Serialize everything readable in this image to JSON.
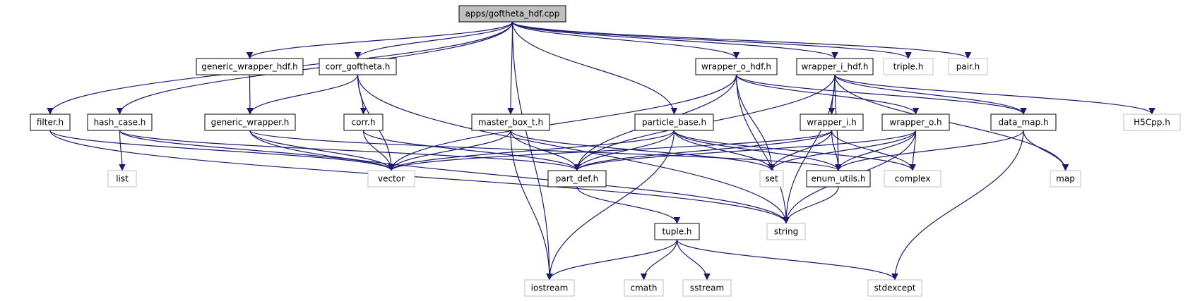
{
  "title": "apps/goftheta_hdf.cpp",
  "colors": {
    "edge": "#191970",
    "root_fill": "#bfbfbf",
    "node_border": "#000000",
    "external_border": "#bfbfbf",
    "text": "#000000"
  },
  "nodes": [
    {
      "id": "root",
      "label": "apps/goftheta_hdf.cpp",
      "kind": "root"
    },
    {
      "id": "generic_wrapper_hdf",
      "label": "generic_wrapper_hdf.h",
      "kind": "header"
    },
    {
      "id": "corr_goftheta",
      "label": "corr_goftheta.h",
      "kind": "header"
    },
    {
      "id": "wrapper_o_hdf",
      "label": "wrapper_o_hdf.h",
      "kind": "header"
    },
    {
      "id": "wrapper_i_hdf",
      "label": "wrapper_i_hdf.h",
      "kind": "header"
    },
    {
      "id": "triple",
      "label": "triple.h",
      "kind": "external"
    },
    {
      "id": "pair",
      "label": "pair.h",
      "kind": "external"
    },
    {
      "id": "filter",
      "label": "filter.h",
      "kind": "header"
    },
    {
      "id": "hash_case",
      "label": "hash_case.h",
      "kind": "header"
    },
    {
      "id": "generic_wrapper",
      "label": "generic_wrapper.h",
      "kind": "header"
    },
    {
      "id": "corr",
      "label": "corr.h",
      "kind": "header"
    },
    {
      "id": "master_box_t",
      "label": "master_box_t.h",
      "kind": "header"
    },
    {
      "id": "particle_base",
      "label": "particle_base.h",
      "kind": "header"
    },
    {
      "id": "wrapper_i",
      "label": "wrapper_i.h",
      "kind": "header"
    },
    {
      "id": "wrapper_o",
      "label": "wrapper_o.h",
      "kind": "header"
    },
    {
      "id": "data_map",
      "label": "data_map.h",
      "kind": "header"
    },
    {
      "id": "H5Cpp",
      "label": "H5Cpp.h",
      "kind": "external"
    },
    {
      "id": "list",
      "label": "list",
      "kind": "external"
    },
    {
      "id": "vector",
      "label": "vector",
      "kind": "external"
    },
    {
      "id": "part_def",
      "label": "part_def.h",
      "kind": "header"
    },
    {
      "id": "set",
      "label": "set",
      "kind": "external"
    },
    {
      "id": "enum_utils",
      "label": "enum_utils.h",
      "kind": "header"
    },
    {
      "id": "complex",
      "label": "complex",
      "kind": "external"
    },
    {
      "id": "map",
      "label": "map",
      "kind": "external"
    },
    {
      "id": "string",
      "label": "string",
      "kind": "external"
    },
    {
      "id": "tuple",
      "label": "tuple.h",
      "kind": "header"
    },
    {
      "id": "iostream",
      "label": "iostream",
      "kind": "external"
    },
    {
      "id": "cmath",
      "label": "cmath",
      "kind": "external"
    },
    {
      "id": "sstream",
      "label": "sstream",
      "kind": "external"
    },
    {
      "id": "stdexcept",
      "label": "stdexcept",
      "kind": "external"
    }
  ],
  "edges": [
    [
      "root",
      "generic_wrapper_hdf"
    ],
    [
      "root",
      "corr_goftheta"
    ],
    [
      "root",
      "wrapper_o_hdf"
    ],
    [
      "root",
      "wrapper_i_hdf"
    ],
    [
      "root",
      "triple"
    ],
    [
      "root",
      "pair"
    ],
    [
      "root",
      "filter"
    ],
    [
      "root",
      "hash_case"
    ],
    [
      "root",
      "master_box_t"
    ],
    [
      "root",
      "particle_base"
    ],
    [
      "root",
      "iostream"
    ],
    [
      "generic_wrapper_hdf",
      "generic_wrapper"
    ],
    [
      "corr_goftheta",
      "generic_wrapper"
    ],
    [
      "corr_goftheta",
      "corr"
    ],
    [
      "corr_goftheta",
      "vector"
    ],
    [
      "corr_goftheta",
      "string"
    ],
    [
      "generic_wrapper",
      "vector"
    ],
    [
      "generic_wrapper",
      "enum_utils"
    ],
    [
      "generic_wrapper",
      "string"
    ],
    [
      "filter",
      "vector"
    ],
    [
      "filter",
      "string"
    ],
    [
      "hash_case",
      "list"
    ],
    [
      "hash_case",
      "vector"
    ],
    [
      "hash_case",
      "part_def"
    ],
    [
      "corr",
      "vector"
    ],
    [
      "corr",
      "part_def"
    ],
    [
      "master_box_t",
      "vector"
    ],
    [
      "master_box_t",
      "part_def"
    ],
    [
      "master_box_t",
      "set"
    ],
    [
      "master_box_t",
      "iostream"
    ],
    [
      "particle_base",
      "vector"
    ],
    [
      "particle_base",
      "part_def"
    ],
    [
      "particle_base",
      "set"
    ],
    [
      "particle_base",
      "enum_utils"
    ],
    [
      "particle_base",
      "complex"
    ],
    [
      "particle_base",
      "iostream"
    ],
    [
      "wrapper_o_hdf",
      "vector"
    ],
    [
      "wrapper_o_hdf",
      "part_def"
    ],
    [
      "wrapper_o_hdf",
      "set"
    ],
    [
      "wrapper_o_hdf",
      "string"
    ],
    [
      "wrapper_o_hdf",
      "wrapper_o"
    ],
    [
      "wrapper_o_hdf",
      "data_map"
    ],
    [
      "wrapper_i_hdf",
      "part_def"
    ],
    [
      "wrapper_i_hdf",
      "wrapper_i"
    ],
    [
      "wrapper_i_hdf",
      "data_map"
    ],
    [
      "wrapper_i_hdf",
      "enum_utils"
    ],
    [
      "wrapper_i_hdf",
      "H5Cpp"
    ],
    [
      "wrapper_i_hdf",
      "map"
    ],
    [
      "wrapper_i_hdf",
      "string"
    ],
    [
      "wrapper_i",
      "vector"
    ],
    [
      "wrapper_i",
      "part_def"
    ],
    [
      "wrapper_i",
      "set"
    ],
    [
      "wrapper_i",
      "enum_utils"
    ],
    [
      "wrapper_i",
      "complex"
    ],
    [
      "wrapper_o",
      "part_def"
    ],
    [
      "wrapper_o",
      "set"
    ],
    [
      "wrapper_o",
      "enum_utils"
    ],
    [
      "wrapper_o",
      "complex"
    ],
    [
      "wrapper_o",
      "string"
    ],
    [
      "data_map",
      "enum_utils"
    ],
    [
      "data_map",
      "map"
    ],
    [
      "data_map",
      "stdexcept"
    ],
    [
      "part_def",
      "tuple"
    ],
    [
      "enum_utils",
      "string"
    ],
    [
      "tuple",
      "iostream"
    ],
    [
      "tuple",
      "cmath"
    ],
    [
      "tuple",
      "sstream"
    ],
    [
      "tuple",
      "stdexcept"
    ]
  ]
}
